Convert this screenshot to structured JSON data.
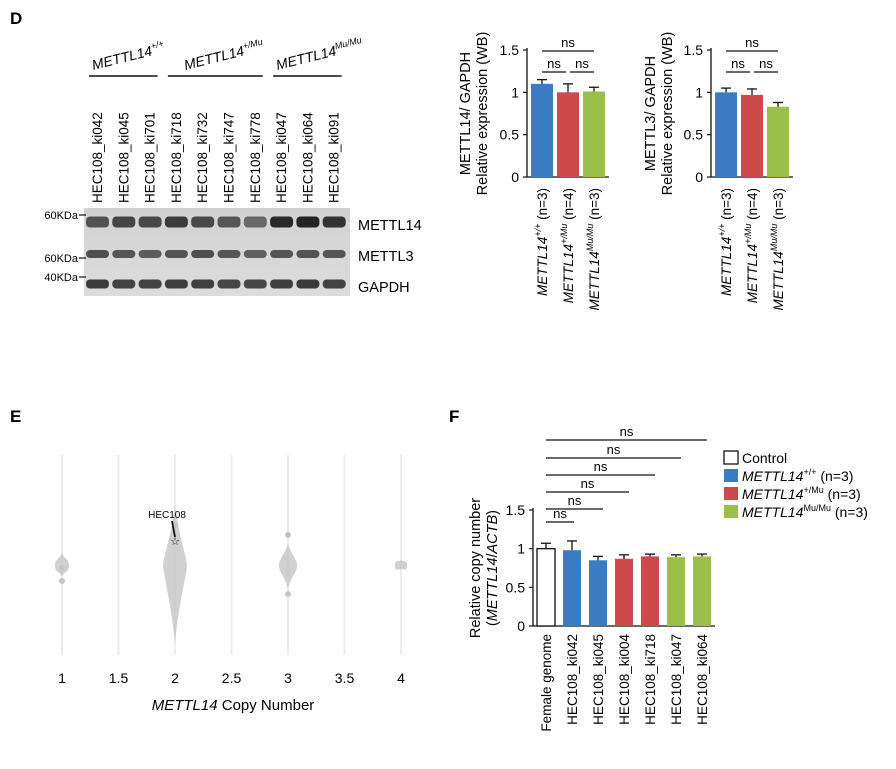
{
  "panel_labels": {
    "d": "D",
    "e": "E",
    "f": "F"
  },
  "colors": {
    "wt": "#3a7cc4",
    "het": "#cc4a4a",
    "hom": "#9cbf4a",
    "control": "#ffffff",
    "axis": "#111111",
    "violin": "#c8c8c8",
    "grid": "#ececec"
  },
  "western_blot": {
    "groups": [
      {
        "prefix": "METTL14",
        "sup": "+/+"
      },
      {
        "prefix": "METTL14",
        "sup": "+/Mu"
      },
      {
        "prefix": "METTL14",
        "sup": "Mu/Mu"
      }
    ],
    "lanes": [
      "HEC108_ki042",
      "HEC108_ki045",
      "HEC108_ki701",
      "HEC108_ki718",
      "HEC108_ki732",
      "HEC108_ki747",
      "HEC108_ki778",
      "HEC108_ki047",
      "HEC108_ki064",
      "HEC108_ki091"
    ],
    "markers": [
      "60KDa",
      "60KDa",
      "40KDa"
    ],
    "bands": [
      "METTL14",
      "METTL3",
      "GAPDH"
    ]
  },
  "sample_labels": [
    {
      "prefix": "METTL14",
      "sup": "+/+",
      "suffix": " (n=3)"
    },
    {
      "prefix": "METTL14",
      "sup": "+/Mu",
      "suffix": " (n=4)"
    },
    {
      "prefix": "METTL14",
      "sup": "Mu/Mu",
      "suffix": " (n=3)"
    }
  ],
  "sig": "ns",
  "legend_f": [
    {
      "text": "Control",
      "sup": "",
      "suffix": "",
      "italic": false
    },
    {
      "text": "METTL14",
      "sup": "+/+",
      "suffix": " (n=3)",
      "italic": true
    },
    {
      "text": "METTL14",
      "sup": "+/Mu",
      "suffix": " (n=3)",
      "italic": true
    },
    {
      "text": "METTL14",
      "sup": "Mu/Mu",
      "suffix": " (n=3)",
      "italic": true
    }
  ],
  "chart_data": [
    {
      "type": "bar",
      "id": "d_mettl14",
      "ylabel_lines": [
        "METTL14/ GAPDH",
        "Relative expression (WB)"
      ],
      "ylim": [
        0,
        1.5
      ],
      "yticks": [
        "0",
        "0.5",
        "1",
        "1.5"
      ],
      "values": [
        1.1,
        1.0,
        1.01
      ],
      "errors": [
        0.05,
        0.1,
        0.05
      ],
      "colors": [
        "wt",
        "het",
        "hom"
      ]
    },
    {
      "type": "bar",
      "id": "d_mettl3",
      "ylabel_lines": [
        "METTL3/ GAPDH",
        "Relative expression (WB)"
      ],
      "ylim": [
        0,
        1.5
      ],
      "yticks": [
        "0",
        "0.5",
        "1",
        "1.5"
      ],
      "values": [
        1.0,
        0.97,
        0.83
      ],
      "errors": [
        0.05,
        0.07,
        0.05
      ],
      "colors": [
        "wt",
        "het",
        "hom"
      ]
    },
    {
      "type": "violin",
      "id": "e_copy_number",
      "xlabel_italic": "METTL14",
      "xlabel_rest": " Copy Number",
      "xlim": [
        0.75,
        4.25
      ],
      "xticks": [
        "1",
        "1.5",
        "2",
        "2.5",
        "3",
        "3.5",
        "4"
      ],
      "annotation": "HEC108",
      "groups": [
        {
          "x": 1,
          "width": 0.12
        },
        {
          "x": 2,
          "width": 0.28
        },
        {
          "x": 3,
          "width": 0.22
        },
        {
          "x": 4,
          "width": 0.1
        }
      ]
    },
    {
      "type": "bar",
      "id": "f_relative_copy",
      "ylabel_lines": [
        "Relative copy number",
        "(METTL14/ACTB)"
      ],
      "ylim": [
        0,
        1.5
      ],
      "yticks": [
        "0",
        "0.5",
        "1",
        "1.5"
      ],
      "categories": [
        "Female genome",
        "HEC108_ki042",
        "HEC108_ki045",
        "HEC108_ki004",
        "HEC108_ki718",
        "HEC108_ki047",
        "HEC108_ki064"
      ],
      "values": [
        1.0,
        0.98,
        0.85,
        0.87,
        0.9,
        0.89,
        0.9
      ],
      "errors": [
        0.07,
        0.12,
        0.05,
        0.05,
        0.03,
        0.03,
        0.03
      ],
      "colors": [
        "control",
        "wt",
        "wt",
        "het",
        "het",
        "hom",
        "hom"
      ]
    }
  ]
}
